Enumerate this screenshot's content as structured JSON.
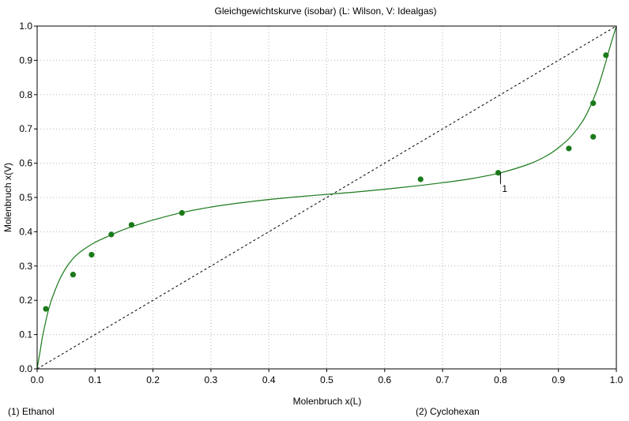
{
  "chart_data": {
    "type": "scatter",
    "title": "Gleichgewichtskurve   (isobar)   (L: Wilson, V: Idealgas)",
    "xlabel": "Molenbruch x(L)",
    "ylabel": "Molenbruch x(V)",
    "xlim": [
      0,
      1
    ],
    "ylim": [
      0,
      1
    ],
    "x_ticks": [
      "0.0",
      "0.1",
      "0.2",
      "0.3",
      "0.4",
      "0.5",
      "0.6",
      "0.7",
      "0.8",
      "0.9",
      "1.0"
    ],
    "y_ticks": [
      "0.0",
      "0.1",
      "0.2",
      "0.3",
      "0.4",
      "0.5",
      "0.6",
      "0.7",
      "0.8",
      "0.9",
      "1.0"
    ],
    "grid": true,
    "component_1": "(1) Ethanol",
    "component_2": "(2) Cyclohexan",
    "colors": {
      "series": "#1a7a1a",
      "diagonal": "#000000",
      "grid": "#b4b4b4"
    },
    "diagonal": {
      "x": [
        0,
        1
      ],
      "y": [
        0,
        1
      ]
    },
    "model_curve": {
      "x": [
        0,
        0.005,
        0.01,
        0.02,
        0.03,
        0.04,
        0.05,
        0.06,
        0.07,
        0.08,
        0.1,
        0.12,
        0.14,
        0.16,
        0.18,
        0.2,
        0.25,
        0.3,
        0.35,
        0.4,
        0.45,
        0.5,
        0.55,
        0.6,
        0.65,
        0.7,
        0.75,
        0.8,
        0.85,
        0.88,
        0.9,
        0.92,
        0.94,
        0.95,
        0.96,
        0.97,
        0.98,
        0.99,
        1.0
      ],
      "y": [
        0,
        0.05,
        0.1,
        0.175,
        0.225,
        0.265,
        0.295,
        0.318,
        0.335,
        0.348,
        0.369,
        0.385,
        0.4,
        0.413,
        0.424,
        0.434,
        0.456,
        0.472,
        0.484,
        0.494,
        0.502,
        0.509,
        0.516,
        0.524,
        0.533,
        0.543,
        0.555,
        0.572,
        0.598,
        0.622,
        0.645,
        0.675,
        0.718,
        0.748,
        0.785,
        0.83,
        0.885,
        0.945,
        1.0
      ]
    },
    "points": {
      "x": [
        0.015,
        0.062,
        0.094,
        0.128,
        0.163,
        0.25,
        0.662,
        0.796,
        0.918,
        0.96,
        0.96,
        0.982
      ],
      "y": [
        0.175,
        0.275,
        0.333,
        0.392,
        0.42,
        0.455,
        0.553,
        0.572,
        0.643,
        0.677,
        0.775,
        0.915
      ]
    },
    "annotation": {
      "text": "1",
      "x": 0.8,
      "y": 0.535
    }
  }
}
